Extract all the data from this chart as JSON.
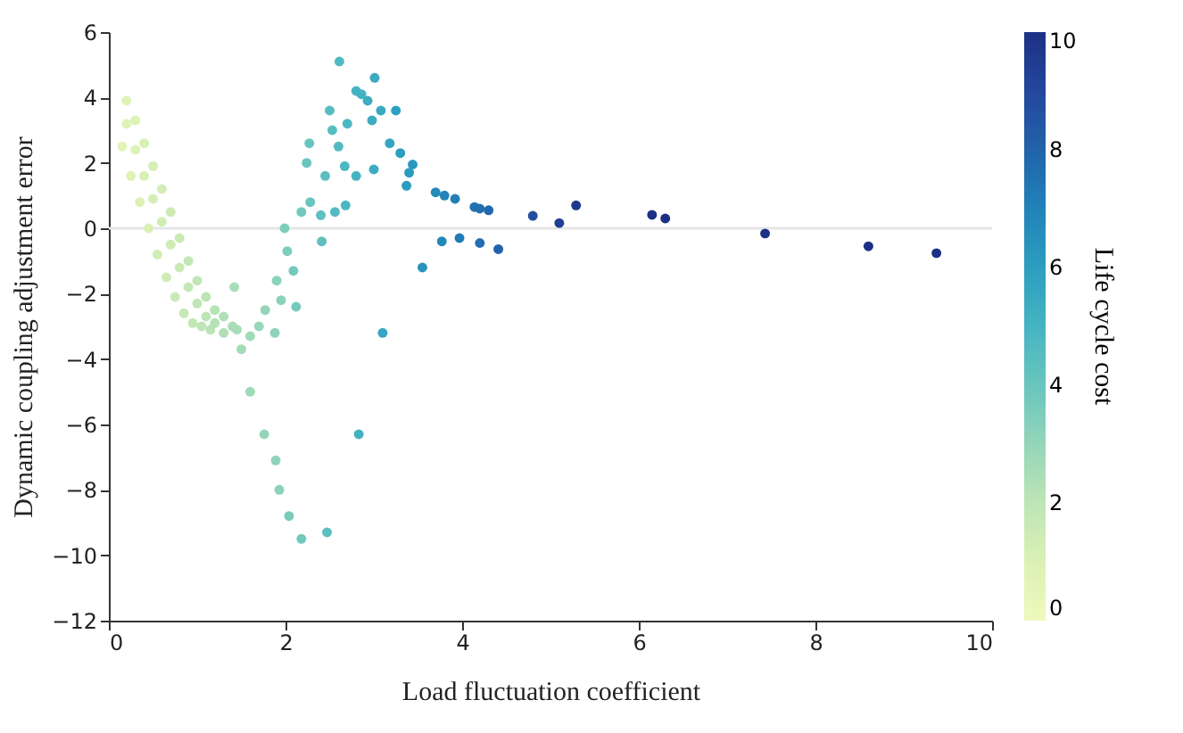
{
  "chart_data": {
    "type": "scatter",
    "xlabel": "Load fluctuation coefficient",
    "ylabel": "Dynamic coupling adjustment error",
    "clabel": "Life cycle cost",
    "xlim": [
      0,
      10
    ],
    "xticks": [
      0,
      2,
      4,
      6,
      8,
      10
    ],
    "ylim": [
      -12,
      6
    ],
    "yticks": [
      -12,
      -10,
      -8,
      -6,
      -4,
      -2,
      0,
      2,
      4,
      6
    ],
    "clim": [
      0,
      10
    ],
    "cticks": [
      0,
      2,
      4,
      6,
      8,
      10
    ],
    "grid": false,
    "marker": "circle",
    "ref_lines": [
      {
        "axis": "y",
        "value": 0,
        "color": "#e6e6e6"
      }
    ],
    "x": [
      0.2,
      0.3,
      0.4,
      0.5,
      0.6,
      0.7,
      0.8,
      0.9,
      1.0,
      1.1,
      1.2,
      1.3,
      0.2,
      0.3,
      0.4,
      0.5,
      0.6,
      0.7,
      0.8,
      0.9,
      1.0,
      1.1,
      1.2,
      1.4,
      0.15,
      0.25,
      0.35,
      0.45,
      0.55,
      0.65,
      0.75,
      0.85,
      0.95,
      1.05,
      1.15,
      1.3,
      1.45,
      1.42,
      1.5,
      1.6,
      1.7,
      1.77,
      1.88,
      1.9,
      1.95,
      1.99,
      2.02,
      2.09,
      2.12,
      1.6,
      1.76,
      1.89,
      1.93,
      2.04,
      2.18,
      2.47,
      2.83,
      3.1,
      2.18,
      2.28,
      2.4,
      2.56,
      2.68,
      2.41,
      2.24,
      2.27,
      2.45,
      2.67,
      2.8,
      3.0,
      2.5,
      2.53,
      2.6,
      2.7,
      2.61,
      3.01,
      2.8,
      2.86,
      2.93,
      2.98,
      3.08,
      3.25,
      3.18,
      3.3,
      3.44,
      3.4,
      3.37,
      3.55,
      3.7,
      3.8,
      3.92,
      4.14,
      4.2,
      4.3,
      3.77,
      3.97,
      4.2,
      4.41,
      4.8,
      5.1,
      5.29,
      6.15,
      6.3,
      7.43,
      8.6,
      9.37
    ],
    "values": [
      3.9,
      3.3,
      2.6,
      1.9,
      1.2,
      0.5,
      -0.3,
      -1.0,
      -1.6,
      -2.1,
      -2.5,
      -2.7,
      3.2,
      2.4,
      1.6,
      0.9,
      0.2,
      -0.5,
      -1.2,
      -1.8,
      -2.3,
      -2.7,
      -2.9,
      -3.0,
      2.5,
      1.6,
      0.8,
      0,
      -0.8,
      -1.5,
      -2.1,
      -2.6,
      -2.9,
      -3.0,
      -3.1,
      -3.2,
      -3.1,
      -1.8,
      -3.7,
      -3.3,
      -3.0,
      -2.5,
      -3.2,
      -1.6,
      -2.2,
      0,
      -0.7,
      -1.3,
      -2.4,
      -5.0,
      -6.3,
      -7.1,
      -8.0,
      -8.8,
      -9.5,
      -9.3,
      -6.3,
      -3.2,
      0.5,
      0.8,
      0.4,
      0.5,
      0.7,
      -0.4,
      2.0,
      2.6,
      1.6,
      1.9,
      1.6,
      1.8,
      3.6,
      3.0,
      2.5,
      3.2,
      5.1,
      4.6,
      4.2,
      4.1,
      3.9,
      3.3,
      3.6,
      3.6,
      2.6,
      2.3,
      1.95,
      1.7,
      1.3,
      -1.2,
      1.1,
      1.0,
      0.9,
      0.65,
      0.6,
      0.55,
      -0.4,
      -0.3,
      -0.45,
      -0.64,
      0.38,
      0.16,
      0.7,
      0.41,
      0.3,
      -0.16,
      -0.55,
      -0.76
    ],
    "cvalues": [
      0.8,
      0.9,
      1.1,
      1.2,
      1.3,
      1.5,
      1.6,
      1.8,
      1.9,
      2.0,
      2.2,
      2.3,
      0.8,
      0.9,
      1.1,
      1.2,
      1.3,
      1.5,
      1.6,
      1.8,
      1.9,
      2.0,
      2.2,
      2.5,
      0.7,
      0.9,
      1.0,
      1.1,
      1.3,
      1.4,
      1.6,
      1.7,
      1.8,
      2.0,
      2.1,
      2.3,
      2.5,
      2.5,
      2.6,
      2.7,
      2.9,
      3.0,
      3.1,
      3.2,
      3.2,
      3.5,
      3.5,
      3.7,
      3.7,
      2.7,
      3.0,
      3.1,
      3.2,
      3.6,
      3.8,
      4.4,
      5.1,
      5.6,
      3.8,
      4.0,
      4.3,
      4.6,
      4.8,
      4.3,
      4.0,
      4.0,
      4.4,
      4.8,
      5.0,
      5.4,
      4.5,
      4.5,
      4.6,
      4.8,
      4.7,
      5.4,
      5.0,
      5.1,
      5.3,
      5.4,
      5.5,
      5.9,
      5.7,
      6.0,
      6.2,
      6.1,
      6.1,
      6.4,
      6.7,
      6.9,
      7.1,
      7.5,
      7.6,
      7.8,
      6.8,
      7.2,
      7.6,
      8.0,
      8.8,
      9.3,
      9.7,
      10,
      10,
      10,
      10,
      10
    ]
  }
}
